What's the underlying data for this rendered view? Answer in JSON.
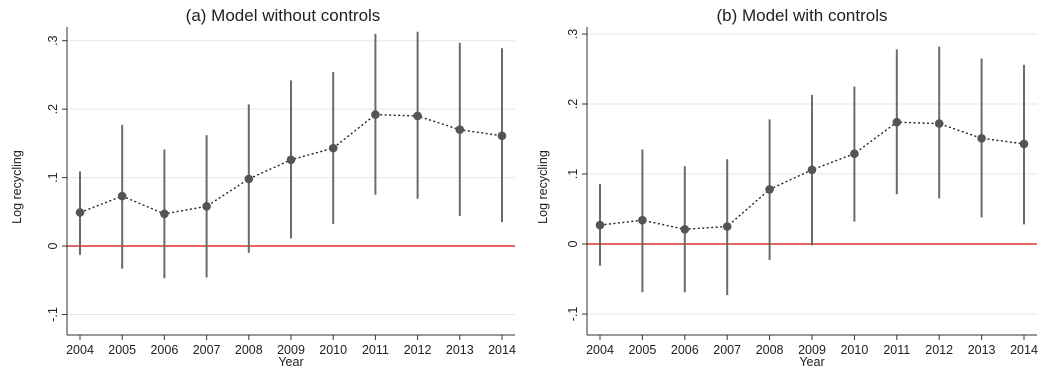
{
  "chart_data": [
    {
      "type": "scatter",
      "title": "(a) Model without controls",
      "xlabel": "Year",
      "ylabel": "Log recycling",
      "x": [
        "2004",
        "2005",
        "2006",
        "2007",
        "2008",
        "2009",
        "2010",
        "2011",
        "2012",
        "2013",
        "2014"
      ],
      "ylim": [
        -0.13,
        0.32
      ],
      "yticks": [
        -0.1,
        0,
        0.1,
        0.2,
        0.3
      ],
      "ytick_labels": [
        "-.1",
        "0",
        ".1",
        ".2",
        ".3"
      ],
      "grid": true,
      "connect_points": "dotted",
      "reference_line": {
        "y": 0,
        "color": "#e0332f"
      },
      "series": [
        {
          "values": [
            0.049,
            0.073,
            0.047,
            0.058,
            0.098,
            0.126,
            0.143,
            0.192,
            0.19,
            0.17,
            0.161
          ],
          "ci_lower": [
            -0.013,
            -0.033,
            -0.047,
            -0.046,
            -0.01,
            0.011,
            0.032,
            0.075,
            0.069,
            0.044,
            0.035
          ],
          "ci_upper": [
            0.109,
            0.177,
            0.141,
            0.162,
            0.207,
            0.242,
            0.254,
            0.31,
            0.313,
            0.297,
            0.289
          ]
        }
      ]
    },
    {
      "type": "scatter",
      "title": "(b) Model with controls",
      "xlabel": "Year",
      "ylabel": "Log recycling",
      "x": [
        "2004",
        "2005",
        "2006",
        "2007",
        "2008",
        "2009",
        "2010",
        "2011",
        "2012",
        "2013",
        "2014"
      ],
      "ylim": [
        -0.13,
        0.31
      ],
      "yticks": [
        -0.1,
        0,
        0.1,
        0.2,
        0.3
      ],
      "ytick_labels": [
        "-.1",
        "0",
        ".1",
        ".2",
        ".3"
      ],
      "grid": true,
      "connect_points": "dotted",
      "reference_line": {
        "y": 0,
        "color": "#e0332f"
      },
      "series": [
        {
          "values": [
            0.027,
            0.034,
            0.021,
            0.025,
            0.078,
            0.106,
            0.129,
            0.174,
            0.172,
            0.151,
            0.143
          ],
          "ci_lower": [
            -0.031,
            -0.069,
            -0.069,
            -0.073,
            -0.023,
            -0.002,
            0.032,
            0.071,
            0.065,
            0.038,
            0.028
          ],
          "ci_upper": [
            0.086,
            0.135,
            0.111,
            0.121,
            0.178,
            0.213,
            0.225,
            0.278,
            0.282,
            0.265,
            0.256
          ]
        }
      ]
    }
  ],
  "colors": {
    "point": "#555555",
    "error_bar": "#6b6b6b",
    "connector": "#222222",
    "grid": "#e6e6e6",
    "axis": "#333333",
    "reference_line": "#e0332f"
  }
}
